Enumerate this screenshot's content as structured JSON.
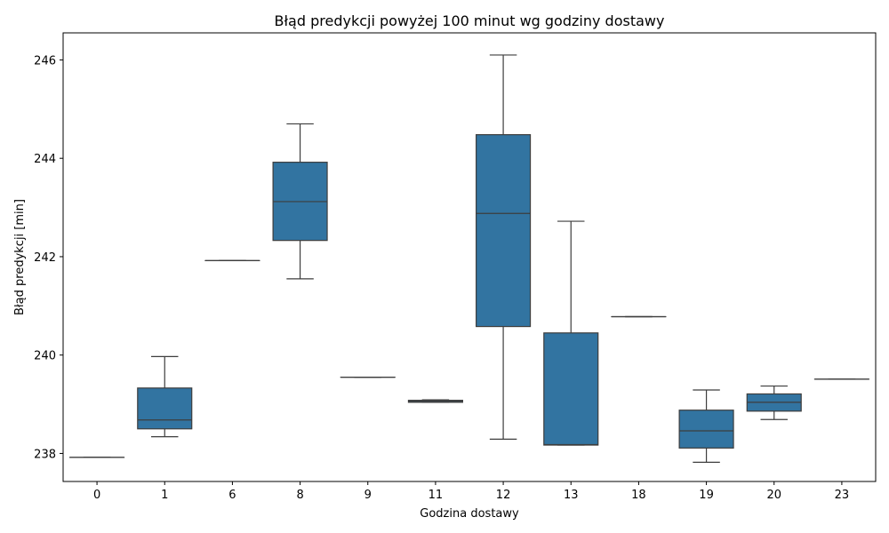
{
  "chart_data": {
    "type": "box",
    "title": "Błąd predykcji powyżej 100 minut wg godziny dostawy",
    "xlabel": "Godzina dostawy",
    "ylabel": "Błąd predykcji [min]",
    "ylim": [
      237.43,
      246.55
    ],
    "yticks": [
      238,
      240,
      242,
      244,
      246
    ],
    "grid": false,
    "box_color": "#3274a1",
    "line_color": "#3d3d3d",
    "categories": [
      "0",
      "1",
      "6",
      "8",
      "9",
      "11",
      "12",
      "13",
      "18",
      "19",
      "20",
      "23"
    ],
    "boxes": [
      {
        "category": "0",
        "whisker_low": 237.92,
        "q1": 237.92,
        "median": 237.92,
        "q3": 237.92,
        "whisker_high": 237.92
      },
      {
        "category": "1",
        "whisker_low": 238.34,
        "q1": 238.5,
        "median": 238.68,
        "q3": 239.33,
        "whisker_high": 239.97
      },
      {
        "category": "6",
        "whisker_low": 241.92,
        "q1": 241.92,
        "median": 241.92,
        "q3": 241.92,
        "whisker_high": 241.92
      },
      {
        "category": "8",
        "whisker_low": 241.55,
        "q1": 242.33,
        "median": 243.12,
        "q3": 243.92,
        "whisker_high": 244.7
      },
      {
        "category": "9",
        "whisker_low": 239.55,
        "q1": 239.55,
        "median": 239.55,
        "q3": 239.55,
        "whisker_high": 239.55
      },
      {
        "category": "11",
        "whisker_low": 239.04,
        "q1": 239.04,
        "median": 239.06,
        "q3": 239.08,
        "whisker_high": 239.09
      },
      {
        "category": "12",
        "whisker_low": 238.29,
        "q1": 240.58,
        "median": 242.88,
        "q3": 244.48,
        "whisker_high": 246.1
      },
      {
        "category": "13",
        "whisker_low": 238.17,
        "q1": 238.17,
        "median": 238.18,
        "q3": 240.45,
        "whisker_high": 242.72
      },
      {
        "category": "18",
        "whisker_low": 240.78,
        "q1": 240.78,
        "median": 240.78,
        "q3": 240.78,
        "whisker_high": 240.78
      },
      {
        "category": "19",
        "whisker_low": 237.82,
        "q1": 238.11,
        "median": 238.46,
        "q3": 238.88,
        "whisker_high": 239.29
      },
      {
        "category": "20",
        "whisker_low": 238.69,
        "q1": 238.86,
        "median": 239.04,
        "q3": 239.21,
        "whisker_high": 239.37
      },
      {
        "category": "23",
        "whisker_low": 239.51,
        "q1": 239.51,
        "median": 239.51,
        "q3": 239.51,
        "whisker_high": 239.51
      }
    ]
  }
}
